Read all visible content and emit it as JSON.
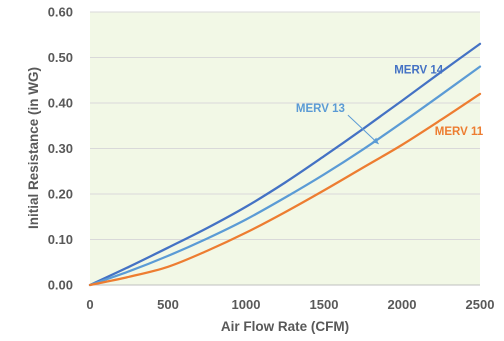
{
  "chart_data": {
    "type": "line",
    "title": "",
    "xlabel": "Air Flow Rate (CFM)",
    "ylabel": "Initial Resistance (in WG)",
    "xlim": [
      0,
      2500
    ],
    "ylim": [
      0,
      0.6
    ],
    "x_ticks": [
      0,
      500,
      1000,
      1500,
      2000,
      2500
    ],
    "y_ticks": [
      0.0,
      0.1,
      0.2,
      0.3,
      0.4,
      0.5,
      0.6
    ],
    "x_tick_labels": [
      "0",
      "500",
      "1000",
      "1500",
      "2000",
      "2500"
    ],
    "y_tick_labels": [
      "0.00",
      "0.10",
      "0.20",
      "0.30",
      "0.40",
      "0.50",
      "0.60"
    ],
    "grid": "horizontal",
    "plot_background": "#F2F8E6",
    "grid_color": "#D9D9D9",
    "legend": "none",
    "series": [
      {
        "name": "MERV 14",
        "color": "#4472C4",
        "x": [
          0,
          250,
          500,
          750,
          1000,
          1250,
          1500,
          1750,
          2000,
          2250,
          2500
        ],
        "y": [
          0.0,
          0.04,
          0.082,
          0.125,
          0.172,
          0.225,
          0.283,
          0.343,
          0.405,
          0.468,
          0.53
        ]
      },
      {
        "name": "MERV 13",
        "color": "#5B9BD5",
        "x": [
          0,
          250,
          500,
          750,
          1000,
          1250,
          1500,
          1750,
          2000,
          2250,
          2500
        ],
        "y": [
          0.0,
          0.03,
          0.064,
          0.102,
          0.144,
          0.192,
          0.243,
          0.298,
          0.357,
          0.418,
          0.48
        ]
      },
      {
        "name": "MERV 11",
        "color": "#ED7D31",
        "x": [
          0,
          250,
          500,
          750,
          1000,
          1250,
          1500,
          1750,
          2000,
          2250,
          2500
        ],
        "y": [
          0.0,
          0.018,
          0.04,
          0.075,
          0.115,
          0.16,
          0.208,
          0.258,
          0.308,
          0.363,
          0.42
        ]
      }
    ],
    "annotations": [
      {
        "text": "MERV 14",
        "series": "MERV 14",
        "x": 1950,
        "y": 0.465,
        "arrow": false
      },
      {
        "text": "MERV 13",
        "series": "MERV 13",
        "x": 1320,
        "y": 0.38,
        "arrow": true,
        "arrow_to": [
          1850,
          0.31
        ]
      },
      {
        "text": "MERV 11",
        "series": "MERV 11",
        "x": 2210,
        "y": 0.33,
        "arrow": false
      }
    ]
  }
}
